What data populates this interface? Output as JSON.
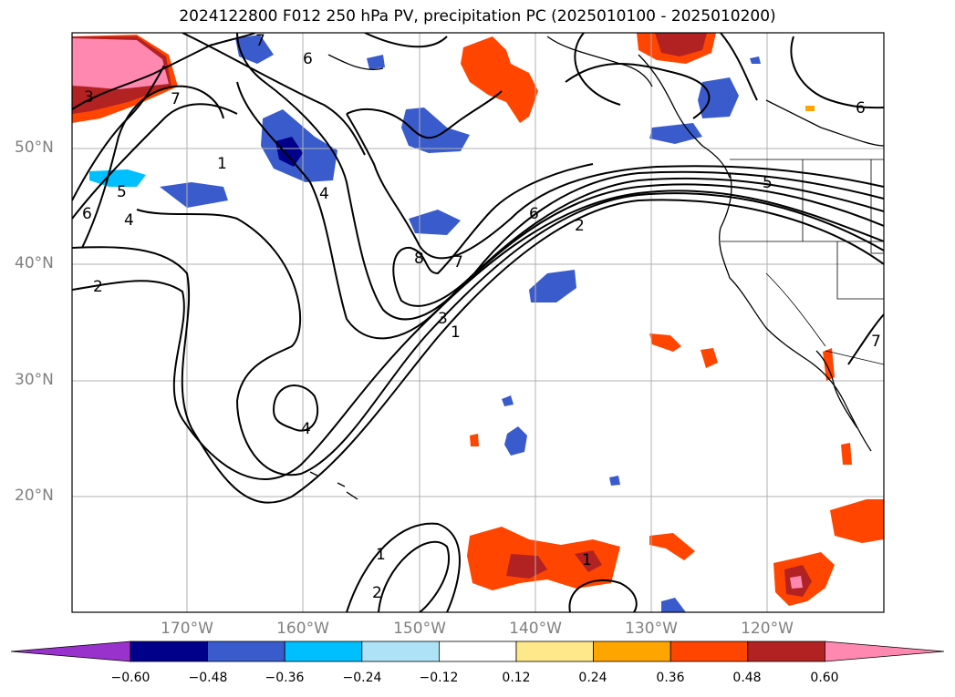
{
  "title": "2024122800 F012 250 hPa PV, precipitation PC (2025010100 - 2025010200)",
  "lat_labels": [
    "50°N",
    "40°N",
    "30°N",
    "20°N"
  ],
  "lon_labels": [
    "170°W",
    "160°W",
    "150°W",
    "140°W",
    "130°W",
    "120°W"
  ],
  "colorbar": {
    "ticks": [
      "−0.60",
      "−0.48",
      "−0.36",
      "−0.24",
      "−0.12",
      "0.12",
      "0.24",
      "0.36",
      "0.48",
      "0.60"
    ],
    "colors": [
      "#9932CC",
      "#00008B",
      "#3A5BCC",
      "#00BFFF",
      "#ADE2F7",
      "#FFFFFF",
      "#FFE88A",
      "#FFA500",
      "#FF4500",
      "#B22222",
      "#FF88B0"
    ]
  },
  "contour_labels": [
    "3",
    "7",
    "6",
    "5",
    "4",
    "6",
    "2",
    "1",
    "4",
    "7",
    "8",
    "7",
    "6",
    "2",
    "3",
    "1",
    "4",
    "2",
    "1",
    "1",
    "5",
    "6",
    "7"
  ],
  "colors": {
    "grid": "#b0b0b0",
    "contour": "#000000",
    "coast": "#000000"
  }
}
